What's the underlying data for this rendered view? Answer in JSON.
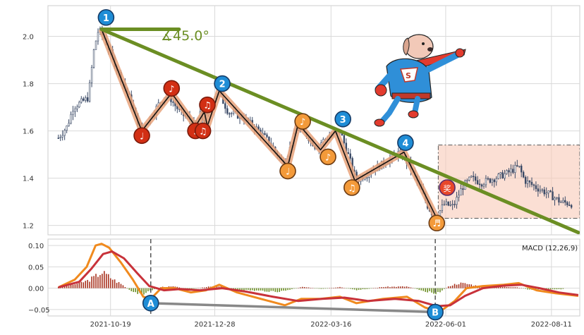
{
  "chart_data": [
    {
      "type": "candlestick",
      "panel": "price",
      "ylim": [
        1.16,
        2.13
      ],
      "yticks": [
        1.2,
        1.4,
        1.6,
        1.8,
        2.0
      ],
      "ytick_labels": [
        "1.2",
        "1.4",
        "1.6",
        "1.8",
        "2.0"
      ],
      "xlim": [
        "2021-09-07",
        "2022-08-30"
      ],
      "xtick_dates": [
        "2021-10-19",
        "2021-12-28",
        "2022-03-16",
        "2022-06-01",
        "2022-08-11"
      ],
      "xtick_labels": [
        "2021-10-19",
        "2021-12-28",
        "2022-03-16",
        "2022-06-01",
        "2022-08-11"
      ],
      "grid": true,
      "price_path": [
        {
          "x": "2021-09-14",
          "y": 1.57
        },
        {
          "x": "2021-09-20",
          "y": 1.62
        },
        {
          "x": "2021-09-24",
          "y": 1.7
        },
        {
          "x": "2021-09-29",
          "y": 1.72
        },
        {
          "x": "2021-10-04",
          "y": 1.74
        },
        {
          "x": "2021-10-08",
          "y": 1.95
        },
        {
          "x": "2021-10-11",
          "y": 2.03
        },
        {
          "x": "2021-10-15",
          "y": 1.99
        },
        {
          "x": "2021-10-19",
          "y": 1.93
        },
        {
          "x": "2021-10-24",
          "y": 1.85
        },
        {
          "x": "2021-10-29",
          "y": 1.78
        },
        {
          "x": "2021-11-02",
          "y": 1.72
        },
        {
          "x": "2021-11-06",
          "y": 1.64
        },
        {
          "x": "2021-11-09",
          "y": 1.61
        },
        {
          "x": "2021-11-15",
          "y": 1.66
        },
        {
          "x": "2021-11-21",
          "y": 1.72
        },
        {
          "x": "2021-11-26",
          "y": 1.76
        },
        {
          "x": "2021-12-01",
          "y": 1.71
        },
        {
          "x": "2021-12-06",
          "y": 1.67
        },
        {
          "x": "2021-12-11",
          "y": 1.65
        },
        {
          "x": "2021-12-15",
          "y": 1.62
        },
        {
          "x": "2021-12-18",
          "y": 1.67
        },
        {
          "x": "2021-12-21",
          "y": 1.63
        },
        {
          "x": "2021-12-26",
          "y": 1.72
        },
        {
          "x": "2021-12-30",
          "y": 1.77
        },
        {
          "x": "2022-01-06",
          "y": 1.68
        },
        {
          "x": "2022-01-15",
          "y": 1.66
        },
        {
          "x": "2022-01-25",
          "y": 1.61
        },
        {
          "x": "2022-02-03",
          "y": 1.55
        },
        {
          "x": "2022-02-12",
          "y": 1.46
        },
        {
          "x": "2022-02-18",
          "y": 1.55
        },
        {
          "x": "2022-02-21",
          "y": 1.61
        },
        {
          "x": "2022-02-28",
          "y": 1.58
        },
        {
          "x": "2022-03-06",
          "y": 1.53
        },
        {
          "x": "2022-03-11",
          "y": 1.56
        },
        {
          "x": "2022-03-16",
          "y": 1.58
        },
        {
          "x": "2022-03-22",
          "y": 1.6
        },
        {
          "x": "2022-03-28",
          "y": 1.49
        },
        {
          "x": "2022-04-02",
          "y": 1.39
        },
        {
          "x": "2022-04-12",
          "y": 1.43
        },
        {
          "x": "2022-04-22",
          "y": 1.47
        },
        {
          "x": "2022-05-01",
          "y": 1.51
        },
        {
          "x": "2022-05-08",
          "y": 1.45
        },
        {
          "x": "2022-05-14",
          "y": 1.37
        },
        {
          "x": "2022-05-20",
          "y": 1.28
        },
        {
          "x": "2022-05-25",
          "y": 1.23
        },
        {
          "x": "2022-05-31",
          "y": 1.29
        },
        {
          "x": "2022-06-06",
          "y": 1.28
        },
        {
          "x": "2022-06-12",
          "y": 1.36
        },
        {
          "x": "2022-06-18",
          "y": 1.4
        },
        {
          "x": "2022-06-25",
          "y": 1.38
        },
        {
          "x": "2022-07-04",
          "y": 1.4
        },
        {
          "x": "2022-07-12",
          "y": 1.42
        },
        {
          "x": "2022-07-20",
          "y": 1.45
        },
        {
          "x": "2022-07-24",
          "y": 1.39
        },
        {
          "x": "2022-08-01",
          "y": 1.36
        },
        {
          "x": "2022-08-10",
          "y": 1.33
        },
        {
          "x": "2022-08-17",
          "y": 1.3
        },
        {
          "x": "2022-08-25",
          "y": 1.29
        }
      ],
      "zigzag": [
        {
          "x": "2021-10-13",
          "y": 2.03
        },
        {
          "x": "2021-11-09",
          "y": 1.6
        },
        {
          "x": "2021-11-29",
          "y": 1.76
        },
        {
          "x": "2021-12-15",
          "y": 1.62
        },
        {
          "x": "2021-12-21",
          "y": 1.68
        },
        {
          "x": "2021-12-23",
          "y": 1.62
        },
        {
          "x": "2021-12-31",
          "y": 1.77
        },
        {
          "x": "2022-02-15",
          "y": 1.45
        },
        {
          "x": "2022-02-22",
          "y": 1.63
        },
        {
          "x": "2022-03-09",
          "y": 1.52
        },
        {
          "x": "2022-03-19",
          "y": 1.6
        },
        {
          "x": "2022-04-01",
          "y": 1.39
        },
        {
          "x": "2022-05-04",
          "y": 1.51
        },
        {
          "x": "2022-05-26",
          "y": 1.23
        }
      ],
      "trendline": {
        "from": {
          "x": "2021-10-13",
          "y": 2.03
        },
        "to": {
          "x": "2022-08-29",
          "y": 1.17
        }
      },
      "horizontal_marker": {
        "from": {
          "x": "2021-10-13",
          "y": 2.03
        },
        "to": {
          "x": "2021-12-04",
          "y": 2.03
        }
      },
      "angle_label": "∡45.0°",
      "numbered_markers": [
        {
          "label": "1",
          "x": "2021-10-16",
          "y": 2.08
        },
        {
          "label": "2",
          "x": "2022-01-02",
          "y": 1.8
        },
        {
          "label": "3",
          "x": "2022-03-24",
          "y": 1.65
        },
        {
          "label": "4",
          "x": "2022-05-05",
          "y": 1.55
        }
      ],
      "note_markers_red": [
        {
          "x": "2021-11-09",
          "y": 1.58,
          "glyph": "♩"
        },
        {
          "x": "2021-11-29",
          "y": 1.78,
          "glyph": "♪"
        },
        {
          "x": "2021-12-15",
          "y": 1.6,
          "glyph": "♩"
        },
        {
          "x": "2021-12-23",
          "y": 1.71,
          "glyph": "♫"
        },
        {
          "x": "2021-12-20",
          "y": 1.6,
          "glyph": "♫"
        }
      ],
      "note_markers_orange": [
        {
          "x": "2022-02-15",
          "y": 1.43,
          "glyph": "♩"
        },
        {
          "x": "2022-02-25",
          "y": 1.64,
          "glyph": "♪"
        },
        {
          "x": "2022-03-14",
          "y": 1.49,
          "glyph": "♪"
        },
        {
          "x": "2022-03-30",
          "y": 1.36,
          "glyph": "♫"
        },
        {
          "x": "2022-05-26",
          "y": 1.21,
          "glyph": "♬"
        }
      ],
      "highlight_box": {
        "x0": "2022-05-27",
        "x1": "2022-08-30",
        "y0": 1.23,
        "y1": 1.54
      },
      "award_marker": {
        "label": "奖",
        "x": "2022-06-02",
        "y": 1.36
      }
    },
    {
      "type": "line+bar",
      "panel": "macd",
      "legend": "MACD (12,26,9)",
      "ylim": [
        -0.065,
        0.115
      ],
      "yticks": [
        -0.05,
        0.0,
        0.05,
        0.1
      ],
      "ytick_labels": [
        "−0.05",
        "0.00",
        "0.05",
        "0.10"
      ],
      "grid": true,
      "dif": [
        {
          "x": "2021-09-14",
          "y": 0.002
        },
        {
          "x": "2021-09-25",
          "y": 0.02
        },
        {
          "x": "2021-10-03",
          "y": 0.05
        },
        {
          "x": "2021-10-09",
          "y": 0.1
        },
        {
          "x": "2021-10-13",
          "y": 0.104
        },
        {
          "x": "2021-10-18",
          "y": 0.095
        },
        {
          "x": "2021-10-26",
          "y": 0.06
        },
        {
          "x": "2021-11-03",
          "y": 0.02
        },
        {
          "x": "2021-11-10",
          "y": -0.02
        },
        {
          "x": "2021-11-15",
          "y": -0.025
        },
        {
          "x": "2021-11-22",
          "y": 0.0
        },
        {
          "x": "2021-12-01",
          "y": 0.0
        },
        {
          "x": "2021-12-12",
          "y": -0.01
        },
        {
          "x": "2021-12-22",
          "y": -0.005
        },
        {
          "x": "2021-12-31",
          "y": 0.008
        },
        {
          "x": "2022-01-12",
          "y": -0.01
        },
        {
          "x": "2022-01-28",
          "y": -0.025
        },
        {
          "x": "2022-02-13",
          "y": -0.04
        },
        {
          "x": "2022-02-24",
          "y": -0.025
        },
        {
          "x": "2022-03-09",
          "y": -0.025
        },
        {
          "x": "2022-03-22",
          "y": -0.02
        },
        {
          "x": "2022-04-02",
          "y": -0.035
        },
        {
          "x": "2022-04-20",
          "y": -0.025
        },
        {
          "x": "2022-05-06",
          "y": -0.02
        },
        {
          "x": "2022-05-18",
          "y": -0.045
        },
        {
          "x": "2022-05-28",
          "y": -0.055
        },
        {
          "x": "2022-06-07",
          "y": -0.03
        },
        {
          "x": "2022-06-15",
          "y": 0.0
        },
        {
          "x": "2022-06-26",
          "y": 0.005
        },
        {
          "x": "2022-07-10",
          "y": 0.008
        },
        {
          "x": "2022-07-20",
          "y": 0.012
        },
        {
          "x": "2022-08-01",
          "y": -0.005
        },
        {
          "x": "2022-08-14",
          "y": -0.012
        },
        {
          "x": "2022-08-29",
          "y": -0.018
        }
      ],
      "dea": [
        {
          "x": "2021-09-14",
          "y": 0.002
        },
        {
          "x": "2021-09-28",
          "y": 0.015
        },
        {
          "x": "2021-10-06",
          "y": 0.045
        },
        {
          "x": "2021-10-14",
          "y": 0.08
        },
        {
          "x": "2021-10-20",
          "y": 0.086
        },
        {
          "x": "2021-10-28",
          "y": 0.07
        },
        {
          "x": "2021-11-06",
          "y": 0.035
        },
        {
          "x": "2021-11-14",
          "y": 0.005
        },
        {
          "x": "2021-11-24",
          "y": -0.005
        },
        {
          "x": "2021-12-05",
          "y": -0.002
        },
        {
          "x": "2021-12-18",
          "y": -0.005
        },
        {
          "x": "2022-01-02",
          "y": 0.0
        },
        {
          "x": "2022-01-18",
          "y": -0.008
        },
        {
          "x": "2022-02-05",
          "y": -0.02
        },
        {
          "x": "2022-02-22",
          "y": -0.03
        },
        {
          "x": "2022-03-10",
          "y": -0.025
        },
        {
          "x": "2022-03-25",
          "y": -0.022
        },
        {
          "x": "2022-04-10",
          "y": -0.03
        },
        {
          "x": "2022-04-28",
          "y": -0.025
        },
        {
          "x": "2022-05-14",
          "y": -0.03
        },
        {
          "x": "2022-05-26",
          "y": -0.042
        },
        {
          "x": "2022-06-04",
          "y": -0.04
        },
        {
          "x": "2022-06-14",
          "y": -0.018
        },
        {
          "x": "2022-06-26",
          "y": 0.0
        },
        {
          "x": "2022-07-10",
          "y": 0.006
        },
        {
          "x": "2022-07-22",
          "y": 0.008
        },
        {
          "x": "2022-08-03",
          "y": 0.0
        },
        {
          "x": "2022-08-16",
          "y": -0.01
        },
        {
          "x": "2022-08-29",
          "y": -0.016
        }
      ],
      "histogram": [
        {
          "x": "2021-09-14",
          "y": 0.003
        },
        {
          "x": "2021-09-21",
          "y": 0.006
        },
        {
          "x": "2021-09-28",
          "y": 0.012
        },
        {
          "x": "2021-10-04",
          "y": 0.018
        },
        {
          "x": "2021-10-09",
          "y": 0.028
        },
        {
          "x": "2021-10-13",
          "y": 0.038
        },
        {
          "x": "2021-10-17",
          "y": 0.03
        },
        {
          "x": "2021-10-22",
          "y": 0.018
        },
        {
          "x": "2021-10-27",
          "y": 0.008
        },
        {
          "x": "2021-11-01",
          "y": -0.006
        },
        {
          "x": "2021-11-06",
          "y": -0.014
        },
        {
          "x": "2021-11-11",
          "y": -0.012
        },
        {
          "x": "2021-11-16",
          "y": -0.004
        },
        {
          "x": "2021-11-22",
          "y": 0.003
        },
        {
          "x": "2021-12-01",
          "y": 0.004
        },
        {
          "x": "2021-12-10",
          "y": -0.003
        },
        {
          "x": "2021-12-20",
          "y": 0.002
        },
        {
          "x": "2021-12-30",
          "y": 0.005
        },
        {
          "x": "2022-01-10",
          "y": -0.003
        },
        {
          "x": "2022-01-25",
          "y": -0.006
        },
        {
          "x": "2022-02-10",
          "y": -0.008
        },
        {
          "x": "2022-02-25",
          "y": 0.003
        },
        {
          "x": "2022-03-10",
          "y": -0.002
        },
        {
          "x": "2022-03-22",
          "y": 0.003
        },
        {
          "x": "2022-04-02",
          "y": -0.005
        },
        {
          "x": "2022-04-20",
          "y": 0.003
        },
        {
          "x": "2022-05-06",
          "y": 0.004
        },
        {
          "x": "2022-05-18",
          "y": -0.007
        },
        {
          "x": "2022-05-26",
          "y": -0.012
        },
        {
          "x": "2022-06-04",
          "y": 0.006
        },
        {
          "x": "2022-06-10",
          "y": 0.012
        },
        {
          "x": "2022-06-16",
          "y": 0.01
        },
        {
          "x": "2022-06-24",
          "y": 0.004
        },
        {
          "x": "2022-07-05",
          "y": 0.003
        },
        {
          "x": "2022-07-18",
          "y": 0.003
        },
        {
          "x": "2022-07-28",
          "y": -0.004
        },
        {
          "x": "2022-08-08",
          "y": -0.003
        },
        {
          "x": "2022-08-20",
          "y": -0.002
        }
      ],
      "vlines": [
        "2021-11-15",
        "2022-05-25"
      ],
      "divergence_line": {
        "from": {
          "x": "2021-11-15",
          "y": -0.035
        },
        "to": {
          "x": "2022-05-25",
          "y": -0.056
        }
      },
      "divergence_markers": [
        {
          "label": "A",
          "x": "2021-11-15",
          "y": -0.035
        },
        {
          "label": "B",
          "x": "2022-05-25",
          "y": -0.056
        }
      ]
    }
  ]
}
